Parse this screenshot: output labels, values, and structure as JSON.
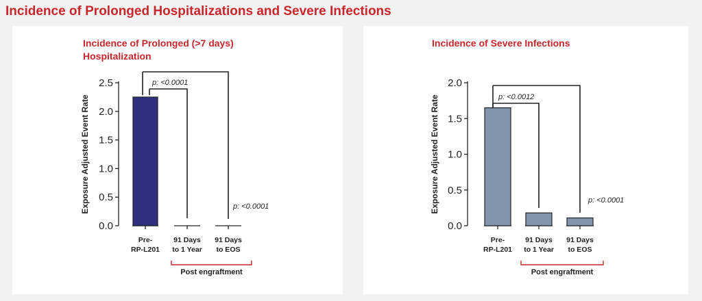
{
  "page": {
    "title": "Incidence of Prolonged Hospitalizations and Severe Infections"
  },
  "colors": {
    "title_red": "#c8262b",
    "bar_left": "#2f2f80",
    "bar_right": "#8394ad",
    "bracket_red": "#c8262b"
  },
  "chart_data": [
    {
      "type": "bar",
      "title_lines": [
        "Incidence of Prolonged (>7 days)",
        "Hospitalization"
      ],
      "ylabel": "Exposure Adjusted Event Rate",
      "ylim": [
        0,
        2.5
      ],
      "yticks": [
        "0.0",
        "0.5",
        "1.0",
        "1.5",
        "2.0",
        "2.5"
      ],
      "categories": [
        [
          "Pre-",
          "RP-L201"
        ],
        [
          "91 Days",
          "to 1 Year"
        ],
        [
          "91 Days",
          "to EOS"
        ]
      ],
      "values": [
        2.25,
        0,
        0
      ],
      "bracket_label": "Post engraftment",
      "annotations": [
        "p: <0.0001",
        "p: <0.0001"
      ]
    },
    {
      "type": "bar",
      "title_lines": [
        "Incidence of Severe Infections"
      ],
      "ylabel": "Exposure Adjusted Event Rate",
      "ylim": [
        0,
        2.0
      ],
      "yticks": [
        "0.0",
        "0.5",
        "1.0",
        "1.5",
        "2.0"
      ],
      "categories": [
        [
          "Pre-",
          "RP-L201"
        ],
        [
          "91 Days",
          "to 1 Year"
        ],
        [
          "91 Days",
          "to EOS"
        ]
      ],
      "values": [
        1.65,
        0.18,
        0.11
      ],
      "bracket_label": "Post engraftment",
      "annotations": [
        "p: <0.0012",
        "p: <0.0001"
      ]
    }
  ]
}
